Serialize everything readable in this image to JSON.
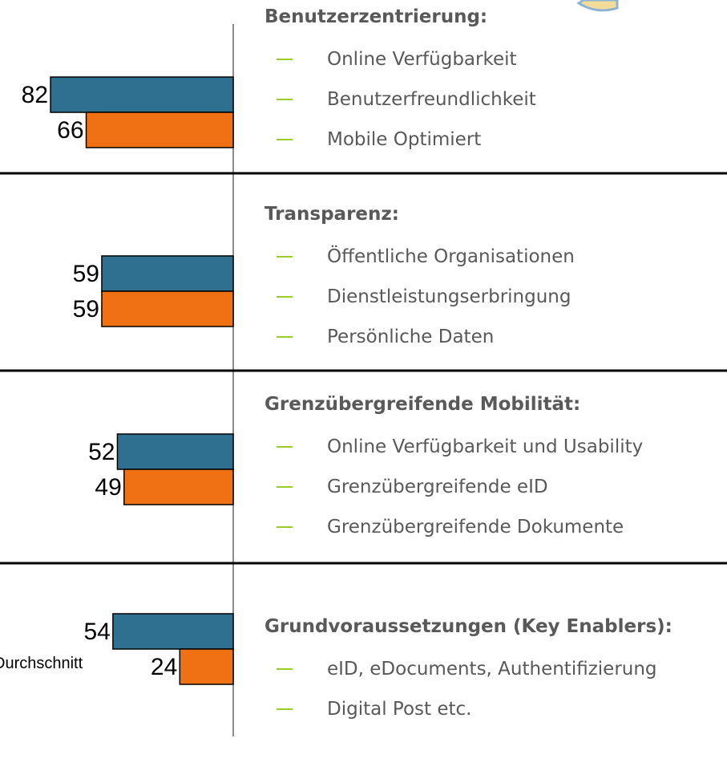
{
  "chart_data": {
    "type": "bar",
    "orientation": "horizontal",
    "xlim": [
      0,
      100
    ],
    "categories": [
      "Benutzerzentrierung:",
      "Transparenz:",
      "Grenzübergreifende Mobilität:",
      "Grundvoraussetzungen (Key Enablers):"
    ],
    "items": [
      [
        "Online Verfügbarkeit",
        "Benutzerfreundlichkeit",
        "Mobile Optimiert"
      ],
      [
        "Öffentliche Organisationen",
        "Dienstleistungserbringung",
        "Persönliche Daten"
      ],
      [
        "Online Verfügbarkeit und Usability",
        "Grenzübergreifende eID",
        "Grenzübergreifende Dokumente"
      ],
      [
        "eID, eDocuments, Authentifizierung",
        "Digital Post etc."
      ]
    ],
    "series": [
      {
        "color": "#2f6f8f",
        "values": [
          82,
          59,
          52,
          54
        ]
      },
      {
        "name": "Durchschnitt",
        "color": "#f07113",
        "values": [
          66,
          59,
          49,
          24
        ]
      }
    ]
  }
}
